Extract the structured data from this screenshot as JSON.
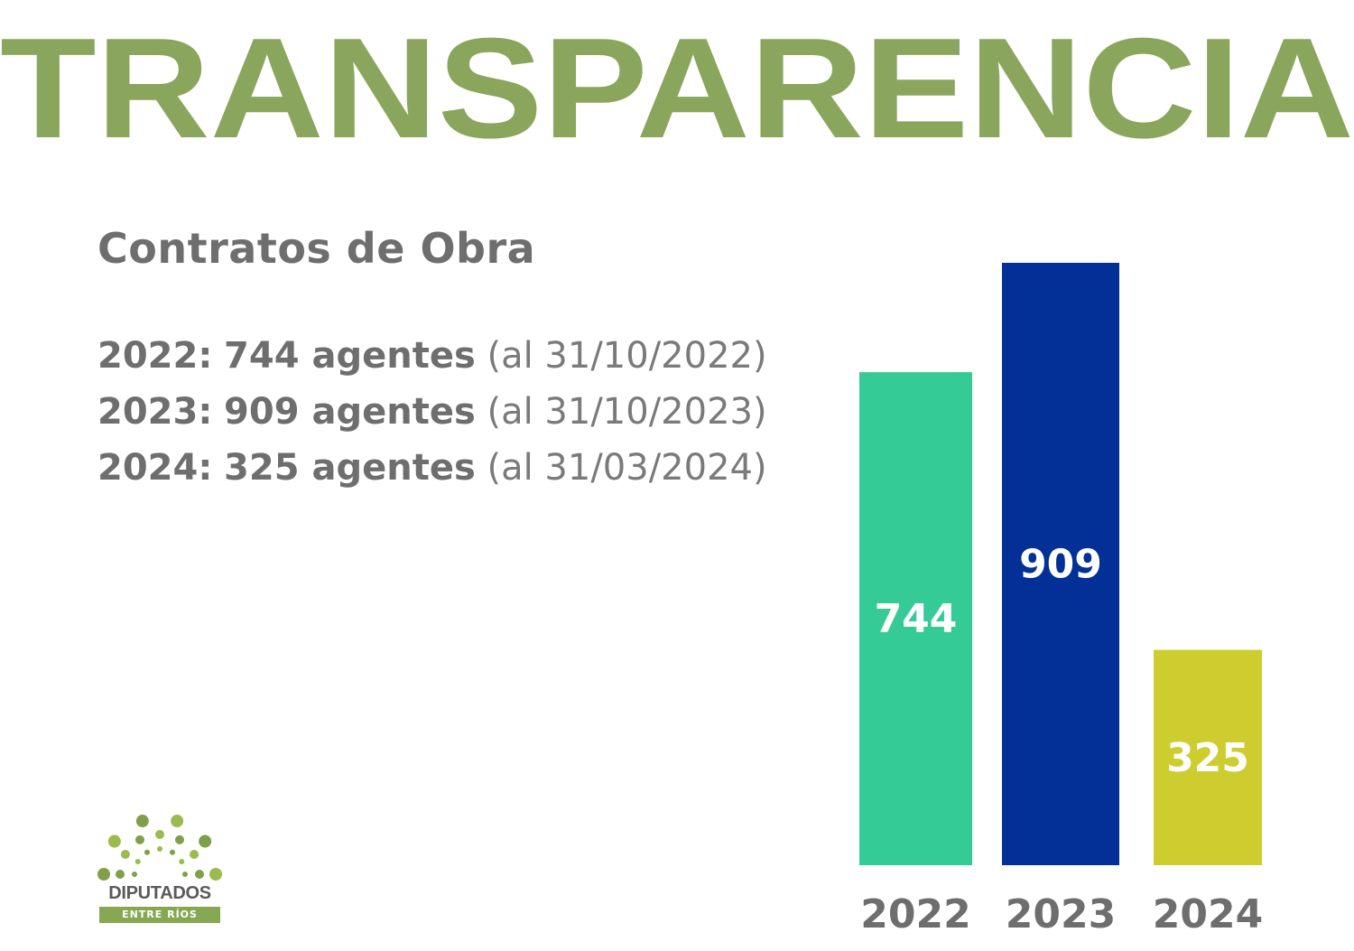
{
  "header": {
    "title": "TRANSPARENCIA",
    "title_color": "#8aa65c"
  },
  "subtitle": "Contratos de Obra",
  "summary": [
    {
      "year_label": "2022:",
      "count_label": "744 agentes",
      "note": "(al 31/10/2022)"
    },
    {
      "year_label": "2023:",
      "count_label": "909 agentes",
      "note": "(al 31/10/2023)"
    },
    {
      "year_label": "2024:",
      "count_label": "325 agentes",
      "note": "(al 31/03/2024)"
    }
  ],
  "logo": {
    "name": "DIPUTADOS",
    "subname": "ENTRE RÍOS",
    "color": "#86a853"
  },
  "chart_data": {
    "type": "bar",
    "categories": [
      "2022",
      "2023",
      "2024"
    ],
    "values": [
      744,
      909,
      325
    ],
    "data_labels": [
      "744",
      "909",
      "325"
    ],
    "colors": [
      "#35cb96",
      "#033097",
      "#cdcd30"
    ],
    "ylim": [
      0,
      909
    ],
    "grid": false,
    "legend": "none"
  }
}
